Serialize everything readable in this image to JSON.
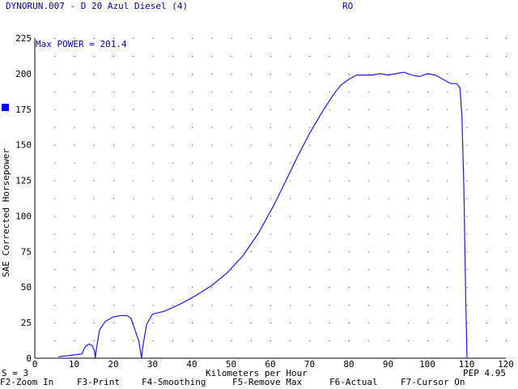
{
  "header": {
    "title": "DYNORUN.007 - D 20 Azul Diesel (4)",
    "run_code": "RO"
  },
  "status": {
    "smoothing": "S = 3",
    "pep": "PEP 4.95"
  },
  "function_keys": [
    "F2-Zoom In",
    "F3-Print",
    "F4-Smoothing",
    "F5-Remove Max",
    "F6-Actual",
    "F7-Cursor On"
  ],
  "colors": {
    "curve": "#1a1ae6",
    "text_blue": "#0000a8",
    "axis": "#000000",
    "grid_dot": "#222222",
    "marker": "#0000ff"
  },
  "chart_data": {
    "type": "line",
    "title": "Max POWER = 201.4",
    "xlabel": "Kilometers per Hour",
    "ylabel": "SAE Corrected Horsepower",
    "xlim": [
      0,
      120
    ],
    "ylim": [
      0,
      225
    ],
    "x_ticks": [
      0,
      10,
      20,
      30,
      40,
      50,
      60,
      70,
      80,
      90,
      100,
      110,
      120
    ],
    "y_ticks": [
      0,
      25,
      50,
      75,
      100,
      125,
      150,
      175,
      200,
      225
    ],
    "grid": "dotted",
    "series": [
      {
        "x": [
          6,
          9,
          12,
          12.8,
          13.8,
          14.6,
          15.2,
          15.4,
          15.6,
          16.5,
          18,
          20,
          22,
          23.5,
          24.5,
          25.5,
          26.5,
          27,
          27.2,
          27.5,
          28.5,
          30,
          33,
          37,
          41,
          45,
          49,
          53,
          57,
          61,
          64,
          67,
          70,
          73,
          76,
          78,
          80,
          82,
          84,
          86,
          88,
          90,
          92,
          94,
          96,
          98,
          100,
          102,
          104,
          106,
          107.5,
          108.3,
          108.8,
          109.3,
          109.8,
          110.1
        ],
        "y": [
          1,
          2,
          3,
          8,
          10,
          9,
          5,
          0,
          5,
          20,
          26,
          29,
          30,
          30,
          28,
          20,
          12,
          3,
          0,
          8,
          24,
          31,
          33,
          38,
          44,
          51,
          60,
          72,
          88,
          108,
          125,
          142,
          158,
          172,
          185,
          192,
          196,
          199,
          199,
          199,
          200,
          199,
          200,
          201,
          199,
          198,
          200,
          199,
          196,
          193,
          193,
          190,
          170,
          120,
          40,
          0
        ]
      }
    ]
  }
}
